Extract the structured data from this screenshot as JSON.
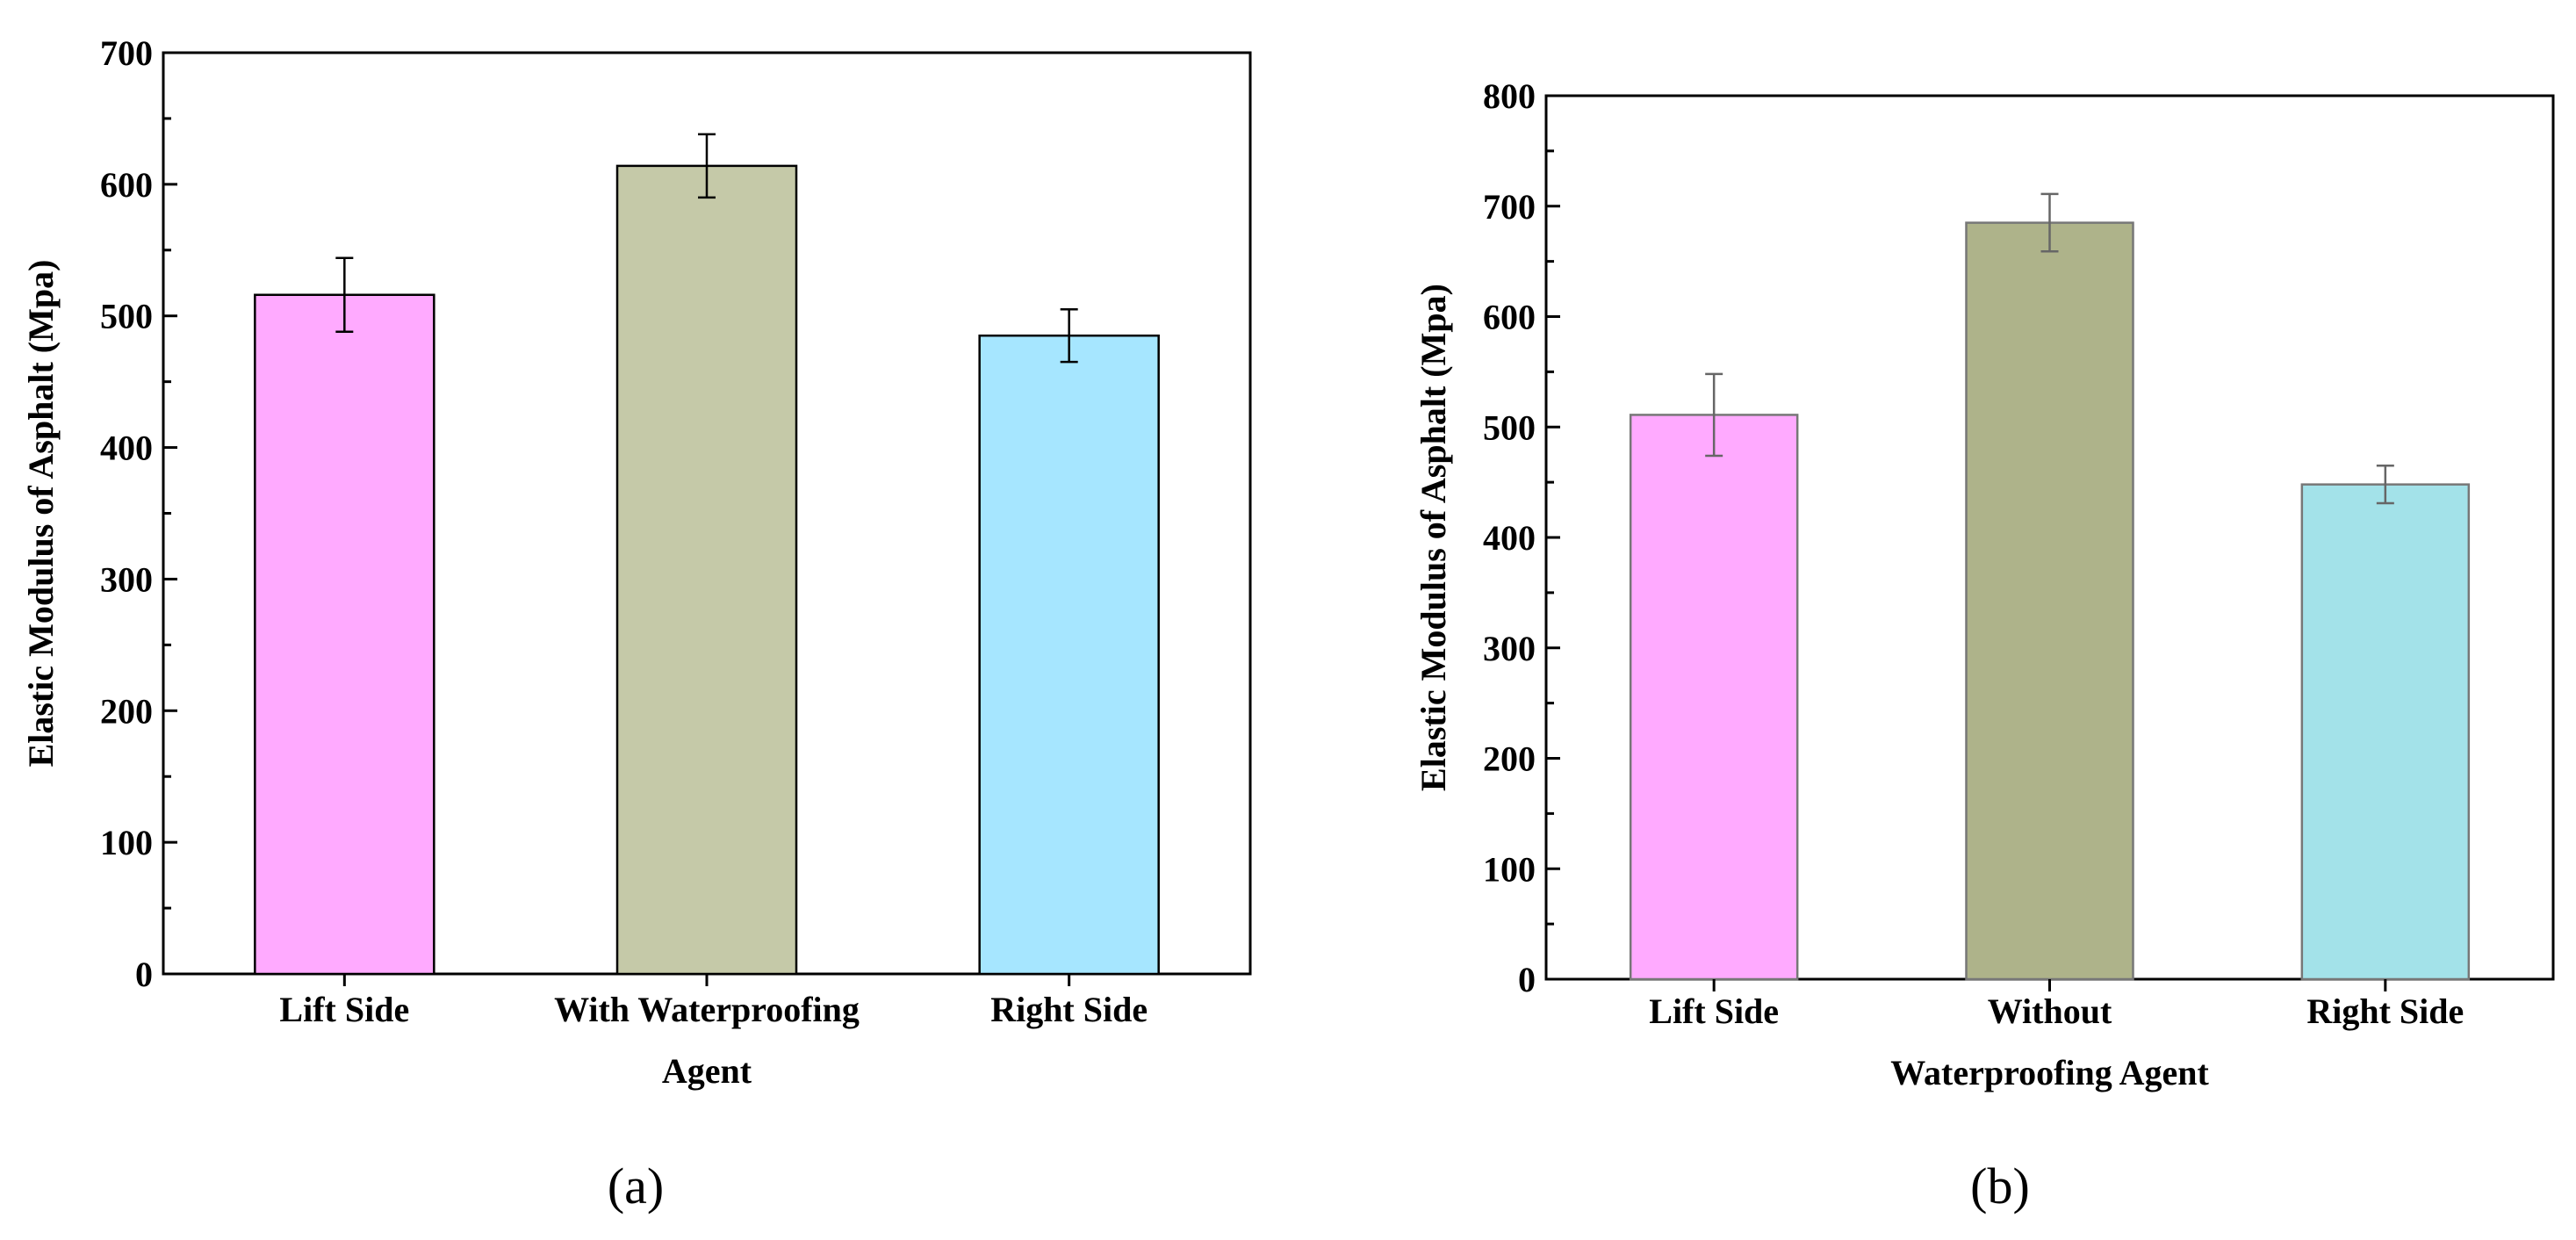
{
  "chart_data": [
    {
      "type": "bar",
      "panel_label": "(a)",
      "title": "",
      "categories": [
        [
          "Lift Side"
        ],
        [
          "With Waterproofing",
          "Agent"
        ],
        [
          "Right Side"
        ]
      ],
      "values": [
        516,
        614,
        485
      ],
      "errors": [
        28,
        24,
        20
      ],
      "colors": [
        "#ffaaff",
        "#c5c9a8",
        "#a6e6ff"
      ],
      "xlabel": "",
      "ylabel": "Elastic Modulus of Asphalt (Mpa)",
      "ylim": [
        0,
        700
      ],
      "yticks": [
        0,
        100,
        200,
        300,
        400,
        500,
        600,
        700
      ]
    },
    {
      "type": "bar",
      "panel_label": "(b)",
      "title": "",
      "categories": [
        [
          "Lift Side"
        ],
        [
          "Without"
        ],
        [
          "Right Side"
        ]
      ],
      "values": [
        511,
        685,
        448
      ],
      "errors": [
        37,
        26,
        17
      ],
      "colors": [
        "#ffaaff",
        "#aeb38a",
        "#a3e2e9"
      ],
      "xlabel": "Waterproofing Agent",
      "ylabel": "Elastic Modulus of Asphalt (Mpa)",
      "ylim": [
        0,
        800
      ],
      "yticks": [
        0,
        100,
        200,
        300,
        400,
        500,
        600,
        700,
        800
      ]
    }
  ]
}
